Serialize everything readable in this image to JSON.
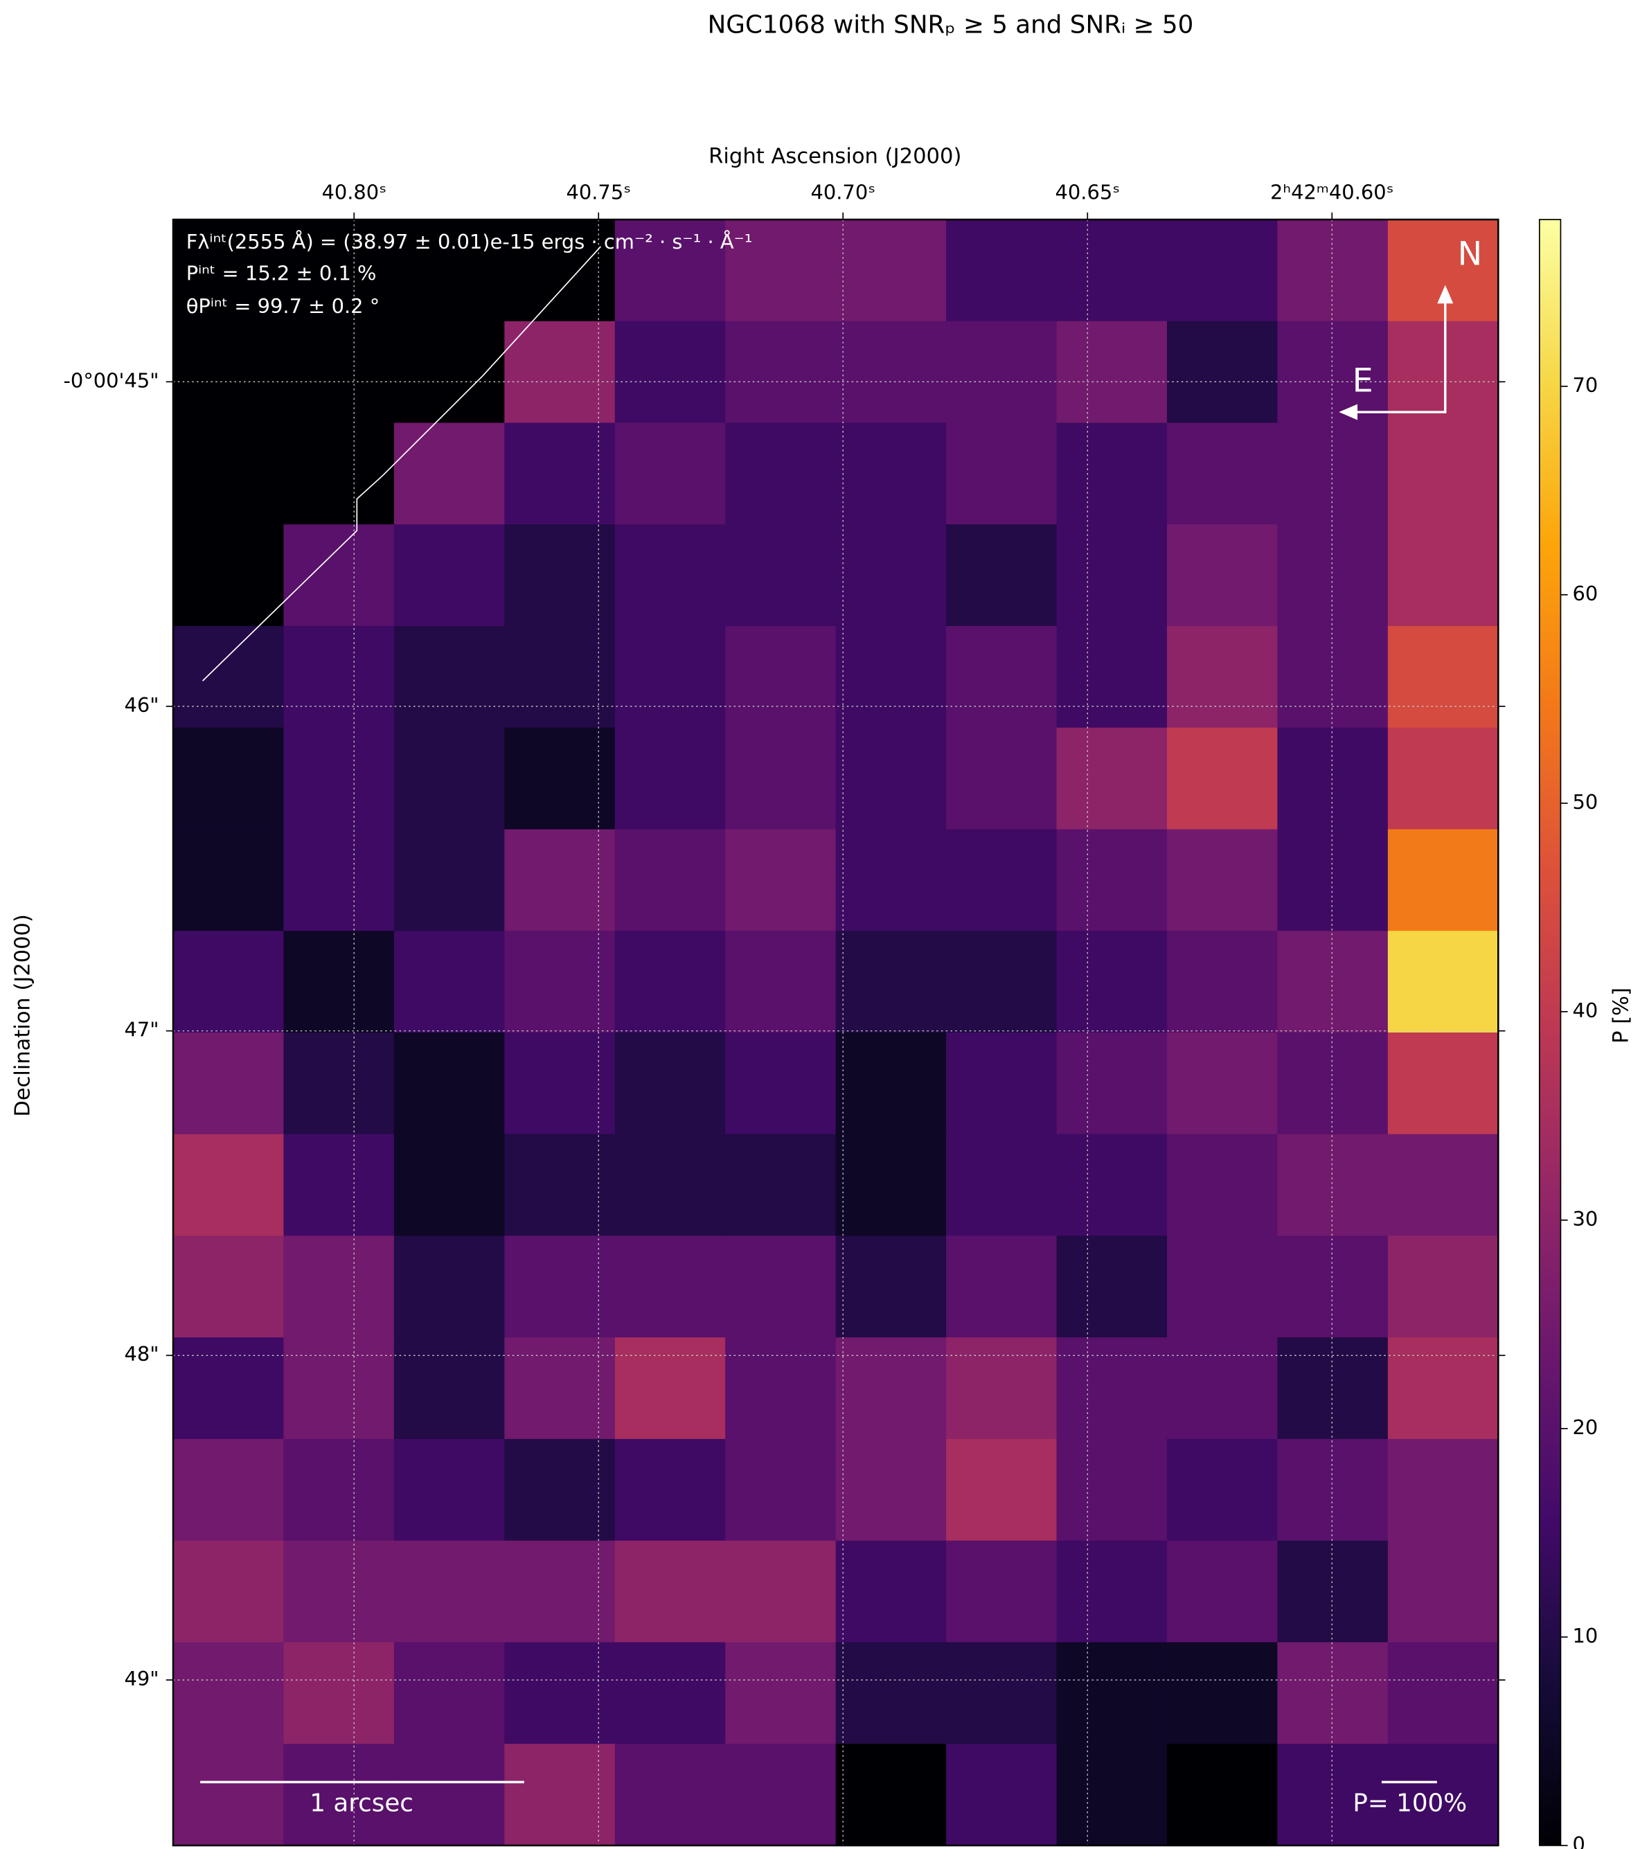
{
  "chart_data": {
    "type": "heatmap",
    "title": "NGC1068 with SNRₚ ≥ 5 and SNRᵢ ≥ 50",
    "xlabel": "Right Ascension (J2000)",
    "ylabel": "Declination (J2000)",
    "colorbar_label": "P [%]",
    "colormap": "inferno",
    "grid": true,
    "xlim": [
      40.837,
      40.566
    ],
    "ylim": [
      44.5,
      49.51
    ],
    "xticks": [
      {
        "value": 40.8,
        "label": "40.80ˢ"
      },
      {
        "value": 40.75,
        "label": "40.75ˢ"
      },
      {
        "value": 40.7,
        "label": "40.70ˢ"
      },
      {
        "value": 40.65,
        "label": "40.65ˢ"
      },
      {
        "value": 40.6,
        "label": "2ʰ42ᵐ40.60ˢ"
      }
    ],
    "yticks": [
      {
        "value": 45,
        "label": "-0°00'45\""
      },
      {
        "value": 46,
        "label": "46\""
      },
      {
        "value": 47,
        "label": "47\""
      },
      {
        "value": 48,
        "label": "48\""
      },
      {
        "value": 49,
        "label": "49\""
      }
    ],
    "clim": [
      0,
      78
    ],
    "cticks": [
      0,
      10,
      20,
      30,
      40,
      50,
      60,
      70
    ],
    "z": [
      [
        0,
        0,
        0,
        0,
        20,
        25,
        25,
        15,
        15,
        15,
        25,
        45
      ],
      [
        0,
        0,
        0,
        30,
        15,
        20,
        20,
        20,
        25,
        10,
        20,
        35
      ],
      [
        0,
        0,
        25,
        15,
        20,
        15,
        15,
        20,
        15,
        20,
        20,
        35
      ],
      [
        0,
        20,
        15,
        10,
        15,
        15,
        15,
        10,
        15,
        25,
        20,
        35
      ],
      [
        10,
        15,
        10,
        10,
        15,
        20,
        15,
        20,
        15,
        30,
        20,
        45
      ],
      [
        5,
        15,
        10,
        5,
        15,
        20,
        15,
        20,
        30,
        40,
        15,
        40
      ],
      [
        5,
        15,
        10,
        25,
        20,
        25,
        15,
        15,
        20,
        25,
        15,
        55
      ],
      [
        15,
        5,
        15,
        20,
        15,
        20,
        10,
        10,
        15,
        20,
        25,
        70
      ],
      [
        25,
        10,
        5,
        15,
        10,
        15,
        5,
        15,
        20,
        25,
        20,
        40
      ],
      [
        35,
        15,
        5,
        10,
        10,
        10,
        5,
        15,
        15,
        20,
        25,
        25
      ],
      [
        30,
        25,
        10,
        20,
        20,
        20,
        10,
        20,
        10,
        20,
        20,
        30
      ],
      [
        15,
        25,
        10,
        25,
        35,
        20,
        25,
        30,
        20,
        20,
        10,
        35
      ],
      [
        25,
        20,
        15,
        10,
        15,
        20,
        25,
        35,
        20,
        15,
        20,
        25
      ],
      [
        30,
        25,
        25,
        25,
        30,
        30,
        15,
        20,
        15,
        20,
        10,
        25
      ],
      [
        25,
        30,
        20,
        15,
        15,
        25,
        10,
        10,
        5,
        5,
        25,
        20
      ],
      [
        25,
        20,
        20,
        30,
        20,
        20,
        0,
        15,
        5,
        0,
        15,
        15
      ]
    ],
    "annotations": [
      "Fλⁱⁿᵗ(2555 Å) = (38.97 ± 0.01)e-15 ergs · cm⁻² · s⁻¹ · Å⁻¹",
      "Pⁱⁿᵗ = 15.2 ± 0.1 %",
      "θPⁱⁿᵗ = 99.7 ± 0.2 °"
    ],
    "north_label": "N",
    "east_label": "E",
    "scale_bar_label": "1 arcsec",
    "vector_scale_label": "P= 100%"
  }
}
